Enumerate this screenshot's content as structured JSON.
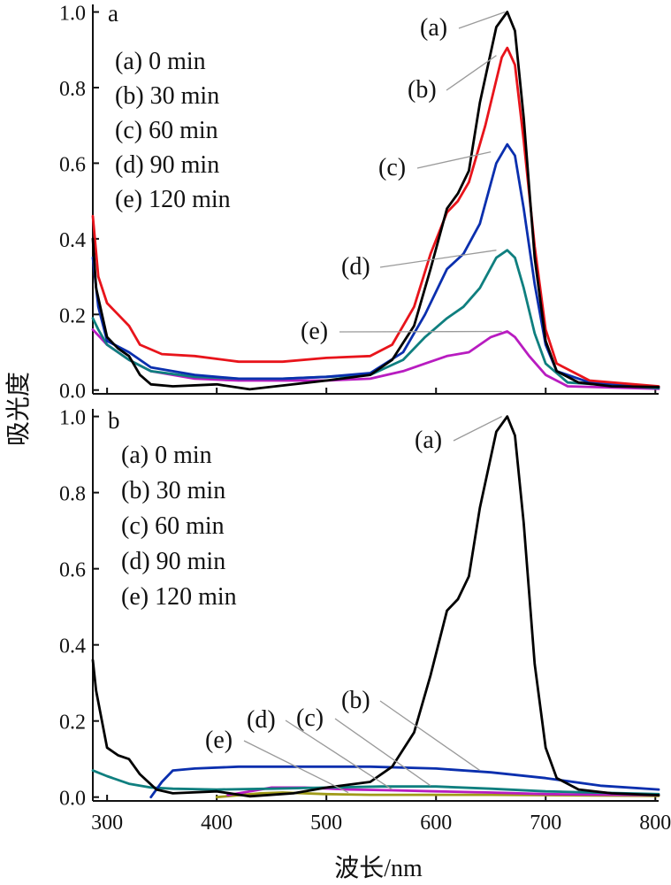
{
  "figure": {
    "ylabel": "吸光度",
    "xlabel": "波长/nm"
  },
  "chart_data": [
    {
      "panel": "a",
      "type": "line",
      "xlabel": "波长/nm",
      "ylabel": "吸光度",
      "xlim": [
        287,
        803
      ],
      "ylim": [
        -0.01,
        1.02
      ],
      "xticks": [
        300,
        400,
        500,
        600,
        700,
        800
      ],
      "yticks": [
        0.0,
        0.2,
        0.4,
        0.6,
        0.8,
        1.0
      ],
      "ytick_labels": [
        "0.0",
        "0.2",
        "0.4",
        "0.6",
        "0.8",
        "1.0"
      ],
      "legend": [
        "(a)  0 min",
        "(b) 30 min",
        "(c) 60 min",
        "(d) 90 min",
        "(e) 120 min"
      ],
      "legend_position": "top-left",
      "series": [
        {
          "name": "(a)  0 min",
          "callout": "(a)",
          "color": "#000000",
          "points": [
            [
              287,
              0.4
            ],
            [
              290,
              0.27
            ],
            [
              300,
              0.14
            ],
            [
              310,
              0.11
            ],
            [
              320,
              0.09
            ],
            [
              330,
              0.04
            ],
            [
              340,
              0.015
            ],
            [
              360,
              0.01
            ],
            [
              400,
              0.015
            ],
            [
              430,
              0.002
            ],
            [
              460,
              0.012
            ],
            [
              500,
              0.025
            ],
            [
              540,
              0.04
            ],
            [
              560,
              0.08
            ],
            [
              580,
              0.17
            ],
            [
              595,
              0.32
            ],
            [
              610,
              0.48
            ],
            [
              620,
              0.52
            ],
            [
              630,
              0.58
            ],
            [
              640,
              0.76
            ],
            [
              655,
              0.96
            ],
            [
              665,
              1.0
            ],
            [
              672,
              0.95
            ],
            [
              680,
              0.72
            ],
            [
              690,
              0.35
            ],
            [
              700,
              0.13
            ],
            [
              710,
              0.05
            ],
            [
              730,
              0.02
            ],
            [
              760,
              0.01
            ],
            [
              803,
              0.008
            ]
          ]
        },
        {
          "name": "(b) 30 min",
          "callout": "(b)",
          "color": "#e8141b",
          "points": [
            [
              287,
              0.46
            ],
            [
              292,
              0.3
            ],
            [
              300,
              0.23
            ],
            [
              310,
              0.2
            ],
            [
              320,
              0.17
            ],
            [
              330,
              0.12
            ],
            [
              350,
              0.095
            ],
            [
              380,
              0.09
            ],
            [
              420,
              0.075
            ],
            [
              460,
              0.075
            ],
            [
              500,
              0.085
            ],
            [
              540,
              0.09
            ],
            [
              560,
              0.12
            ],
            [
              580,
              0.22
            ],
            [
              595,
              0.36
            ],
            [
              610,
              0.47
            ],
            [
              620,
              0.5
            ],
            [
              630,
              0.55
            ],
            [
              645,
              0.7
            ],
            [
              660,
              0.88
            ],
            [
              665,
              0.905
            ],
            [
              672,
              0.86
            ],
            [
              680,
              0.66
            ],
            [
              690,
              0.38
            ],
            [
              700,
              0.16
            ],
            [
              710,
              0.07
            ],
            [
              740,
              0.025
            ],
            [
              803,
              0.01
            ]
          ]
        },
        {
          "name": "(c) 60 min",
          "callout": "(c)",
          "color": "#0a2fae",
          "points": [
            [
              287,
              0.35
            ],
            [
              292,
              0.22
            ],
            [
              300,
              0.13
            ],
            [
              320,
              0.1
            ],
            [
              340,
              0.06
            ],
            [
              380,
              0.04
            ],
            [
              420,
              0.03
            ],
            [
              460,
              0.03
            ],
            [
              500,
              0.035
            ],
            [
              540,
              0.045
            ],
            [
              570,
              0.1
            ],
            [
              590,
              0.2
            ],
            [
              610,
              0.32
            ],
            [
              625,
              0.36
            ],
            [
              640,
              0.44
            ],
            [
              655,
              0.6
            ],
            [
              665,
              0.65
            ],
            [
              672,
              0.62
            ],
            [
              680,
              0.48
            ],
            [
              690,
              0.28
            ],
            [
              700,
              0.12
            ],
            [
              710,
              0.05
            ],
            [
              740,
              0.02
            ],
            [
              803,
              0.008
            ]
          ]
        },
        {
          "name": "(d) 90 min",
          "callout": "(d)",
          "color": "#0f7f7f",
          "points": [
            [
              287,
              0.19
            ],
            [
              292,
              0.16
            ],
            [
              300,
              0.12
            ],
            [
              320,
              0.08
            ],
            [
              340,
              0.05
            ],
            [
              380,
              0.035
            ],
            [
              420,
              0.03
            ],
            [
              460,
              0.03
            ],
            [
              500,
              0.035
            ],
            [
              540,
              0.04
            ],
            [
              570,
              0.08
            ],
            [
              590,
              0.14
            ],
            [
              610,
              0.19
            ],
            [
              625,
              0.22
            ],
            [
              640,
              0.27
            ],
            [
              655,
              0.35
            ],
            [
              665,
              0.37
            ],
            [
              672,
              0.35
            ],
            [
              680,
              0.27
            ],
            [
              690,
              0.15
            ],
            [
              700,
              0.07
            ],
            [
              720,
              0.02
            ],
            [
              803,
              0.005
            ]
          ]
        },
        {
          "name": "(e) 120 min",
          "callout": "(e)",
          "color": "#b81cc0",
          "points": [
            [
              287,
              0.16
            ],
            [
              300,
              0.12
            ],
            [
              320,
              0.08
            ],
            [
              340,
              0.05
            ],
            [
              380,
              0.03
            ],
            [
              420,
              0.025
            ],
            [
              460,
              0.025
            ],
            [
              500,
              0.025
            ],
            [
              540,
              0.03
            ],
            [
              570,
              0.05
            ],
            [
              590,
              0.07
            ],
            [
              610,
              0.09
            ],
            [
              630,
              0.1
            ],
            [
              650,
              0.14
            ],
            [
              665,
              0.155
            ],
            [
              672,
              0.14
            ],
            [
              685,
              0.09
            ],
            [
              700,
              0.04
            ],
            [
              720,
              0.01
            ],
            [
              803,
              0.003
            ]
          ]
        }
      ]
    },
    {
      "panel": "b",
      "type": "line",
      "xlabel": "波长/nm",
      "ylabel": "吸光度",
      "xlim": [
        287,
        803
      ],
      "ylim": [
        -0.01,
        1.02
      ],
      "xticks": [
        300,
        400,
        500,
        600,
        700,
        800
      ],
      "xtick_labels": [
        "300",
        "400",
        "500",
        "600",
        "700",
        "800"
      ],
      "yticks": [
        0.0,
        0.2,
        0.4,
        0.6,
        0.8,
        1.0
      ],
      "ytick_labels": [
        "0.0",
        "0.2",
        "0.4",
        "0.6",
        "0.8",
        "1.0"
      ],
      "legend": [
        "(a)  0 min",
        "(b) 30 min",
        "(c) 60 min",
        "(d) 90 min",
        "(e) 120 min"
      ],
      "legend_position": "top-left",
      "series": [
        {
          "name": "(a)  0 min",
          "callout": "(a)",
          "color": "#000000",
          "points": [
            [
              287,
              0.36
            ],
            [
              290,
              0.28
            ],
            [
              300,
              0.13
            ],
            [
              310,
              0.11
            ],
            [
              320,
              0.1
            ],
            [
              330,
              0.06
            ],
            [
              345,
              0.02
            ],
            [
              360,
              0.01
            ],
            [
              400,
              0.015
            ],
            [
              430,
              0.002
            ],
            [
              470,
              0.01
            ],
            [
              500,
              0.025
            ],
            [
              540,
              0.04
            ],
            [
              560,
              0.08
            ],
            [
              580,
              0.17
            ],
            [
              595,
              0.32
            ],
            [
              610,
              0.49
            ],
            [
              620,
              0.52
            ],
            [
              630,
              0.58
            ],
            [
              640,
              0.76
            ],
            [
              655,
              0.96
            ],
            [
              665,
              1.0
            ],
            [
              672,
              0.95
            ],
            [
              680,
              0.72
            ],
            [
              690,
              0.35
            ],
            [
              700,
              0.13
            ],
            [
              710,
              0.05
            ],
            [
              730,
              0.02
            ],
            [
              760,
              0.01
            ],
            [
              803,
              0.005
            ]
          ]
        },
        {
          "name": "(b) 30 min",
          "callout": "(b)",
          "color": "#0a2fae",
          "points": [
            [
              340,
              0.0
            ],
            [
              350,
              0.04
            ],
            [
              360,
              0.07
            ],
            [
              380,
              0.075
            ],
            [
              420,
              0.08
            ],
            [
              480,
              0.08
            ],
            [
              540,
              0.08
            ],
            [
              600,
              0.075
            ],
            [
              650,
              0.065
            ],
            [
              700,
              0.05
            ],
            [
              750,
              0.03
            ],
            [
              803,
              0.02
            ]
          ]
        },
        {
          "name": "(c) 60 min",
          "callout": "(c)",
          "color": "#0f7f7f",
          "points": [
            [
              287,
              0.07
            ],
            [
              300,
              0.055
            ],
            [
              320,
              0.035
            ],
            [
              340,
              0.025
            ],
            [
              360,
              0.022
            ],
            [
              400,
              0.02
            ],
            [
              450,
              0.022
            ],
            [
              500,
              0.025
            ],
            [
              550,
              0.028
            ],
            [
              600,
              0.028
            ],
            [
              650,
              0.022
            ],
            [
              700,
              0.015
            ],
            [
              803,
              0.008
            ]
          ]
        },
        {
          "name": "(d) 90 min",
          "callout": "(d)",
          "color": "#b81cc0",
          "points": [
            [
              410,
              0.005
            ],
            [
              430,
              0.015
            ],
            [
              450,
              0.025
            ],
            [
              480,
              0.025
            ],
            [
              520,
              0.02
            ],
            [
              560,
              0.018
            ],
            [
              600,
              0.015
            ],
            [
              650,
              0.012
            ],
            [
              700,
              0.008
            ],
            [
              803,
              0.005
            ]
          ]
        },
        {
          "name": "(e) 120 min",
          "callout": "(e)",
          "color": "#a09a18",
          "points": [
            [
              400,
              0.0
            ],
            [
              440,
              0.01
            ],
            [
              460,
              0.012
            ],
            [
              500,
              0.008
            ],
            [
              540,
              0.006
            ],
            [
              600,
              0.006
            ],
            [
              650,
              0.006
            ],
            [
              700,
              0.005
            ],
            [
              803,
              0.003
            ]
          ]
        }
      ]
    }
  ]
}
